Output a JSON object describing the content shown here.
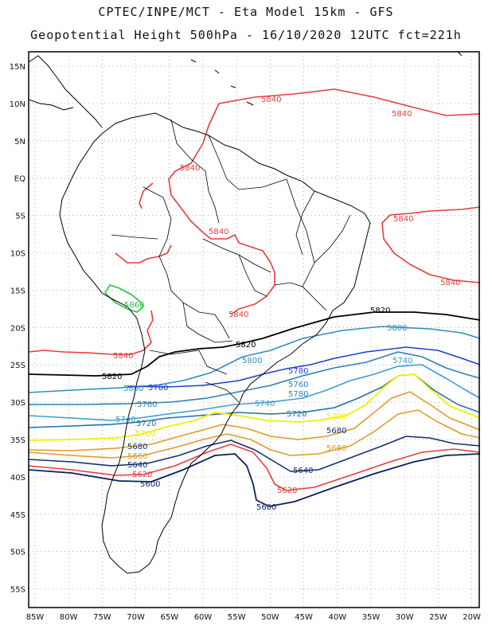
{
  "title_line1": "CPTEC/INPE/MCT -  Eta Model 15km - GFS",
  "title_line2": "Geopotential Height 500hPa - 16/10/2020 12UTC fct=221h",
  "axes": {
    "lat_labels": [
      "15N",
      "10N",
      "5N",
      "EQ",
      "5S",
      "10S",
      "15S",
      "20S",
      "25S",
      "30S",
      "35S",
      "40S",
      "45S",
      "50S",
      "55S"
    ],
    "lon_labels": [
      "85W",
      "80W",
      "75W",
      "70W",
      "65W",
      "60W",
      "55W",
      "50W",
      "45W",
      "40W",
      "35W",
      "30W",
      "25W",
      "20W"
    ]
  },
  "colors": {
    "c5840": "#e83c3c",
    "c5820": "#000000",
    "c5800": "#2e8fc0",
    "c5780": "#1f40d0",
    "c5760": "#2c80b8",
    "c5740": "#3a9ed0",
    "c5720": "#2070a8",
    "c5700": "#f0f000",
    "c5680": "#e09a28",
    "c5660": "#e09a28",
    "c5640": "#12306e",
    "c5620": "#e83c3c",
    "c5600": "#0b1f5c",
    "c5860": "#22c83a",
    "coast": "#000000",
    "grid": "#9a9a9a"
  },
  "contour_labels": {
    "l5840_a": "5840",
    "l5840_b": "5840",
    "l5840_c": "5840",
    "l5840_d": "5840",
    "l5840_e": "5840",
    "l5840_f": "5840",
    "l5840_g": "5840",
    "l5840_h": "5840",
    "l5860": "5860",
    "l5820_a": "5820",
    "l5820_b": "5820",
    "l5820_c": "5820",
    "l5800_a": "5800",
    "l5800_b": "5800",
    "l5800_c": "5800",
    "l5780_a": "5780",
    "l5780_b": "5780",
    "l5780_c": "5780",
    "l5760_a": "5760",
    "l5760_b": "5760",
    "l5740_a": "5740",
    "l5740_b": "5740",
    "l5740_c": "5740",
    "l5720_a": "5720",
    "l5720_b": "5720",
    "l5700_a": "5700",
    "l5700_b": "5700",
    "l5680_a": "5680",
    "l5680_b": "5680",
    "l5660_a": "5660",
    "l5660_b": "5660",
    "l5640_a": "5640",
    "l5640_b": "5640",
    "l5620_a": "5620",
    "l5620_b": "5620",
    "l5600_a": "5600",
    "l5600_b": "5600"
  }
}
